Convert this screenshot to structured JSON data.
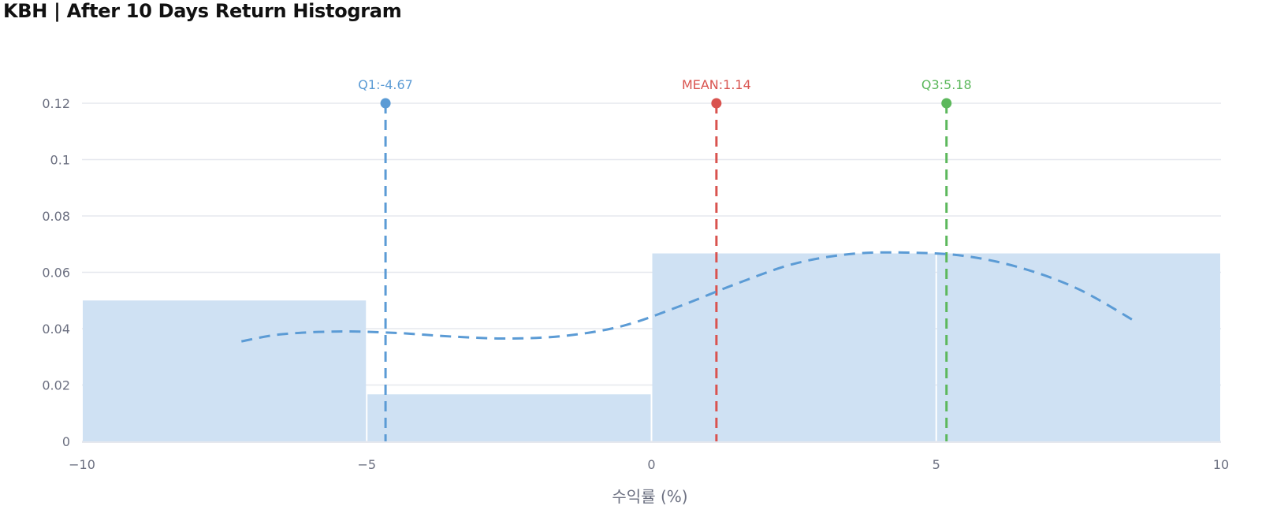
{
  "title": "KBH | After 10 Days Return Histogram",
  "chart_data": {
    "type": "histogram",
    "title": "KBH | After 10 Days Return Histogram",
    "xlabel": "수익률 (%)",
    "ylabel": "",
    "xlim": [
      -10,
      10
    ],
    "ylim": [
      0,
      0.12
    ],
    "x_ticks": [
      {
        "value": -10,
        "label": "−10"
      },
      {
        "value": -5,
        "label": "−5"
      },
      {
        "value": 0,
        "label": "0"
      },
      {
        "value": 5,
        "label": "5"
      },
      {
        "value": 10,
        "label": "10"
      }
    ],
    "y_ticks": [
      {
        "value": 0,
        "label": "0"
      },
      {
        "value": 0.02,
        "label": "0.02"
      },
      {
        "value": 0.04,
        "label": "0.04"
      },
      {
        "value": 0.06,
        "label": "0.06"
      },
      {
        "value": 0.08,
        "label": "0.08"
      },
      {
        "value": 0.1,
        "label": "0.1"
      },
      {
        "value": 0.12,
        "label": "0.12"
      }
    ],
    "grid": true,
    "bins": [
      {
        "x0": -10,
        "x1": -5,
        "value": 0.05
      },
      {
        "x0": -5,
        "x1": 0,
        "value": 0.0167
      },
      {
        "x0": 0,
        "x1": 5,
        "value": 0.0667
      },
      {
        "x0": 5,
        "x1": 10,
        "value": 0.0667
      }
    ],
    "bar_color": "#cfe1f3",
    "density_curve": {
      "color": "#5b9bd5",
      "x": [
        -7.2,
        -6.5,
        -5.5,
        -4.5,
        -3.5,
        -2.5,
        -1.5,
        -0.5,
        0.5,
        1.5,
        2.5,
        3.5,
        4.5,
        5.5,
        6.5,
        7.5,
        8.5
      ],
      "y": [
        0.0355,
        0.038,
        0.039,
        0.0385,
        0.0372,
        0.0365,
        0.0375,
        0.041,
        0.048,
        0.056,
        0.063,
        0.0665,
        0.067,
        0.0658,
        0.0615,
        0.054,
        0.0425
      ]
    },
    "markers": [
      {
        "name": "Q1",
        "label": "Q1:-4.67",
        "x": -4.67,
        "y": 0.12,
        "color": "#5b9bd5"
      },
      {
        "name": "MEAN",
        "label": "MEAN:1.14",
        "x": 1.14,
        "y": 0.12,
        "color": "#d9534f"
      },
      {
        "name": "Q3",
        "label": "Q3:5.18",
        "x": 5.18,
        "y": 0.12,
        "color": "#5cb85c"
      }
    ]
  }
}
